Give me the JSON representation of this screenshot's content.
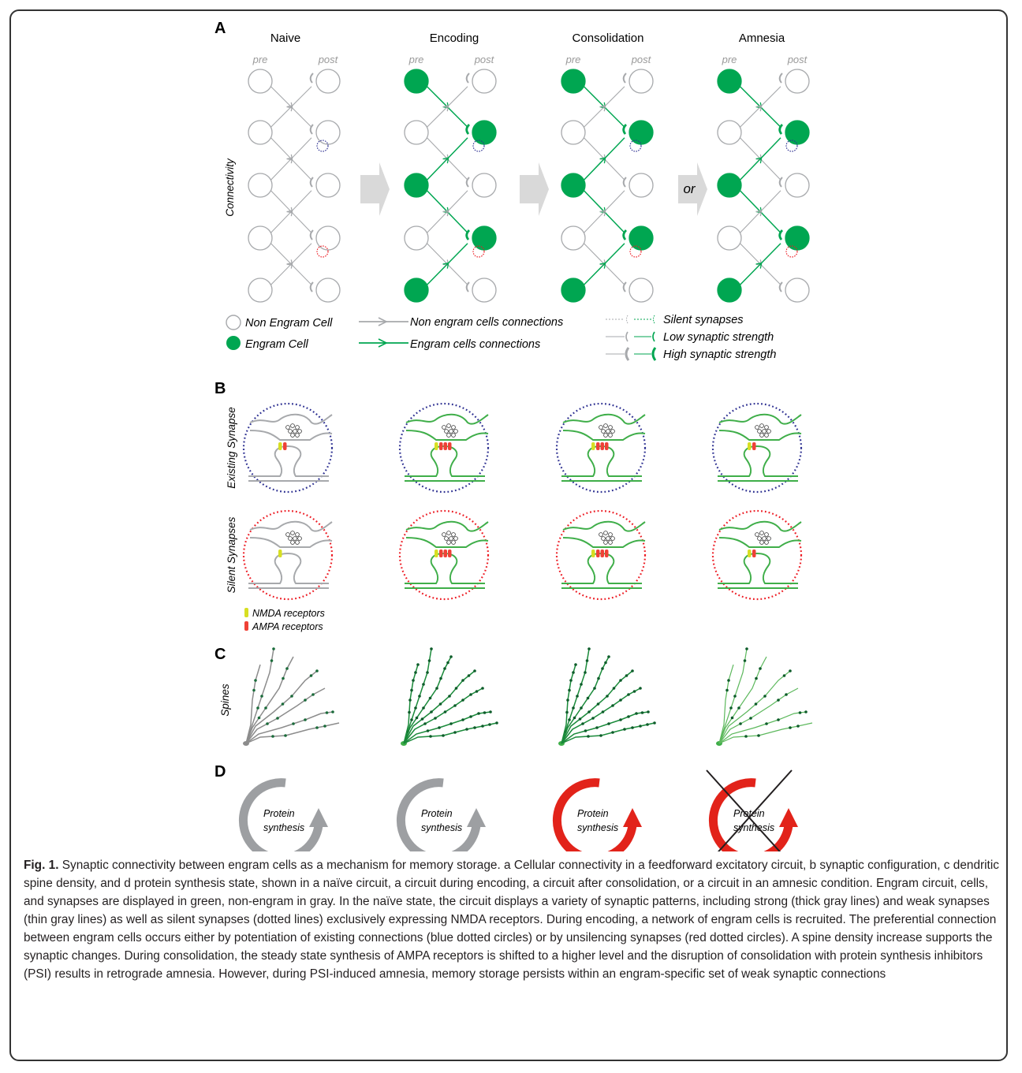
{
  "panels": {
    "A": "A",
    "B": "B",
    "C": "C",
    "D": "D"
  },
  "columns": [
    "Naive",
    "Encoding",
    "Consolidation",
    "Amnesia"
  ],
  "pre_label": "pre",
  "post_label": "post",
  "row_labels": {
    "connectivity": "Connectivity",
    "existing_synapse": "Existing Synapse",
    "silent_synapses": "Silent Synapses",
    "spines": "Spines"
  },
  "arrow_or": "or",
  "legend_a": {
    "non_engram_cell": "Non Engram Cell",
    "engram_cell": "Engram Cell",
    "non_engram_connections": "Non engram cells connections",
    "engram_connections": "Engram cells connections",
    "silent_synapses": "Silent synapses",
    "low_strength": "Low synaptic strength",
    "high_strength": "High synaptic strength"
  },
  "legend_b": {
    "nmda": "NMDA receptors",
    "ampa": "AMPA receptors"
  },
  "protein_synthesis": [
    "Protein",
    "synthesis"
  ],
  "colors": {
    "engram_green": "#00a651",
    "light_green": "#3fae49",
    "gray": "#a7a9ac",
    "blue_dots": "#2e3192",
    "red_dots": "#ed1c24",
    "nmda_yellow": "#d7df23",
    "ampa_red": "#ef4136",
    "synthesis_red": "#e2231a",
    "arrow_gray": "#d9d9d9"
  },
  "caption": {
    "fig_label": "Fig. 1.",
    "text": "Synaptic connectivity between engram cells as a mechanism for memory storage. a Cellular connectivity in a feedforward excitatory circuit, b synaptic configuration, c dendritic spine density, and d protein synthesis state, shown in a naïve circuit, a circuit during encoding, a circuit after consolidation, or a circuit in an amnesic condition. Engram circuit, cells, and synapses are displayed in green, non-engram in gray. In the naïve state, the circuit displays a variety of synaptic patterns, including strong (thick gray lines) and weak synapses (thin gray lines) as well as silent synapses (dotted lines) exclusively expressing NMDA receptors. During encoding, a network of engram cells is recruited. The preferential connection between engram cells occurs either by potentiation of existing connections (blue dotted circles) or by unsilencing synapses (red dotted circles). A spine density increase supports the synaptic changes. During consolidation, the steady state synthesis of AMPA receptors is shifted to a higher level and the disruption of consolidation with protein synthesis inhibitors (PSI) results in retrograde amnesia. However, during PSI-induced amnesia, memory storage persists within an engram-specific set of weak synaptic connections"
  }
}
